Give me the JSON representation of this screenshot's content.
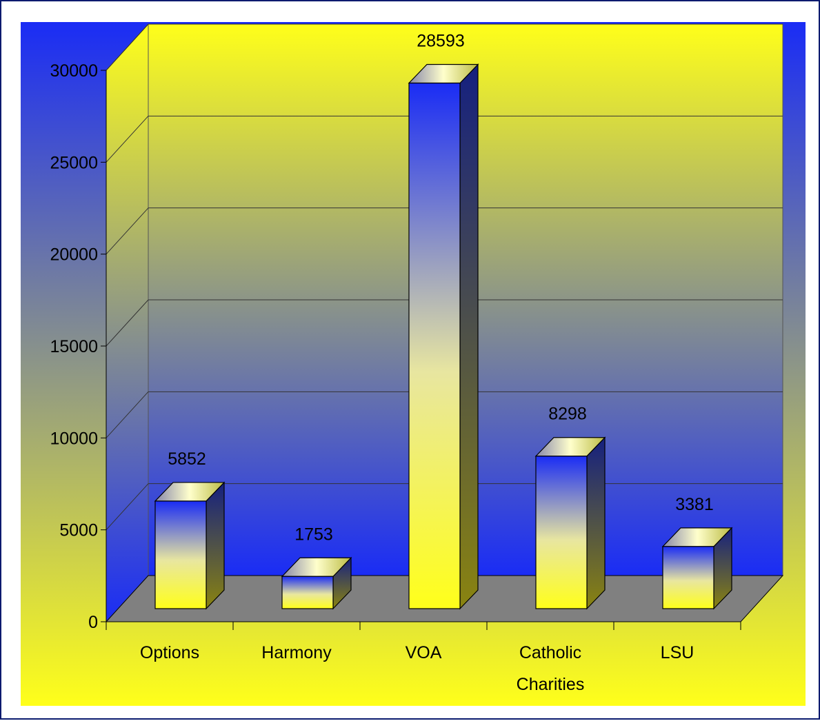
{
  "chart_data": {
    "type": "bar",
    "style": "3d-column",
    "categories": [
      [
        "Options"
      ],
      [
        "Harmony"
      ],
      [
        "VOA"
      ],
      [
        "Catholic",
        "Charities"
      ],
      [
        "LSU"
      ]
    ],
    "values": [
      5852,
      1753,
      28593,
      8298,
      3381
    ],
    "data_labels": [
      "5852",
      "1753",
      "28593",
      "8298",
      "3381"
    ],
    "ylim": [
      0,
      30000
    ],
    "yticks": [
      0,
      5000,
      10000,
      15000,
      20000,
      25000,
      30000
    ],
    "ytick_labels": [
      "0",
      "5000",
      "10000",
      "15000",
      "20000",
      "25000",
      "30000"
    ],
    "title": "",
    "xlabel": "",
    "ylabel": "",
    "grid": true,
    "legend": "none"
  },
  "colors": {
    "frame_border": "#0a1a6e",
    "background_top": "#1a2cf5",
    "background_bottom": "#ffff1a",
    "bar_top": "#1a2cf5",
    "bar_bottom": "#ffff1a",
    "floor": "#808080",
    "gridline": "#000000"
  }
}
